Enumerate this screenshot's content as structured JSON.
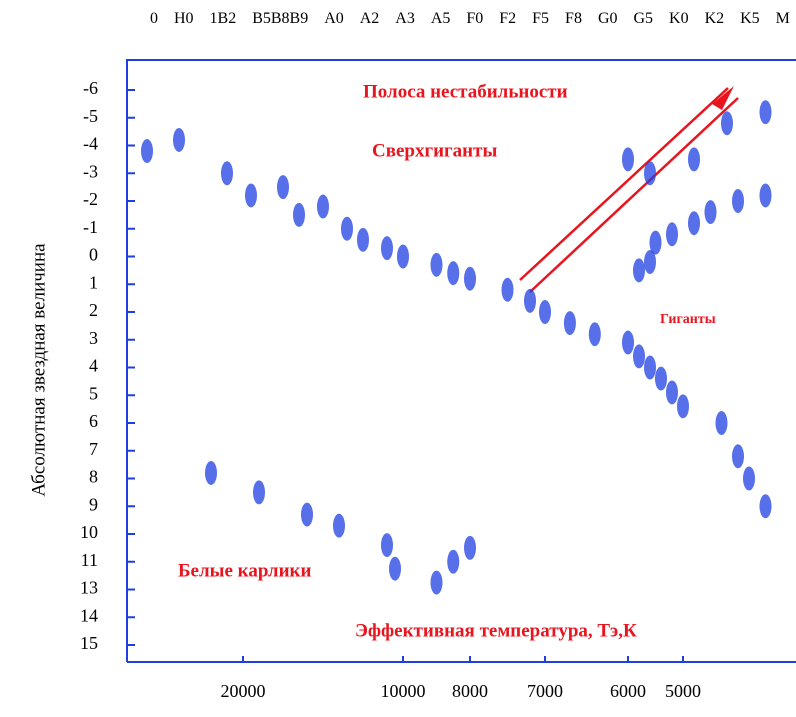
{
  "chart_data": {
    "type": "scatter",
    "spectral_classes": [
      "0",
      "H0",
      "1B2",
      "B5B8B9",
      "A0",
      "A2",
      "A3",
      "A5",
      "F0",
      "F2",
      "F5",
      "F8",
      "G0",
      "G5",
      "K0",
      "K2",
      "K5",
      "M"
    ],
    "y_label": "Абсолютная  звездная  величина",
    "annotations": [
      "Полоса нестабильности",
      "Сверхгиганты",
      "Гиганты",
      "Белые карлики",
      "Эффективная температура, Тэ,К"
    ],
    "yticks": [
      -6,
      -5,
      -4,
      -3,
      -2,
      -1,
      0,
      1,
      2,
      3,
      4,
      5,
      6,
      7,
      8,
      9,
      10,
      11,
      13,
      14,
      15
    ],
    "xticks": [
      20000,
      10000,
      8000,
      7000,
      6000,
      5000
    ],
    "color": "#1f3fe0",
    "x": [
      26000,
      24000,
      21000,
      19500,
      17500,
      16500,
      15000,
      13500,
      12500,
      11000,
      10000,
      9000,
      8500,
      8000,
      7500,
      7200,
      7000,
      6700,
      6400,
      6000,
      5800,
      5600,
      5400,
      5200,
      5000,
      4300,
      4000,
      3800,
      3500,
      5500,
      5200,
      4800,
      4500,
      4000,
      3500,
      5800,
      5600,
      6000,
      5600,
      4800,
      4200,
      3500,
      22000,
      19000,
      16000,
      14000,
      11000,
      10500,
      9000,
      8500,
      8000
    ],
    "values": [
      -3.8,
      -4.2,
      -3,
      -2.2,
      -2.5,
      -1.5,
      -1.8,
      -1,
      -0.6,
      -0.3,
      0,
      0.3,
      0.6,
      0.8,
      1.2,
      1.6,
      2,
      2.4,
      2.8,
      3.1,
      3.6,
      4,
      4.4,
      4.9,
      5.4,
      6,
      7.2,
      8,
      9,
      -0.5,
      -0.8,
      -1.2,
      -1.6,
      -2,
      -2.2,
      0.5,
      0.2,
      -3.5,
      -3,
      -3.5,
      -4.8,
      -5.2,
      7.8,
      8.5,
      9.3,
      9.7,
      10.4,
      11.5,
      12.5,
      11,
      10.5
    ]
  }
}
